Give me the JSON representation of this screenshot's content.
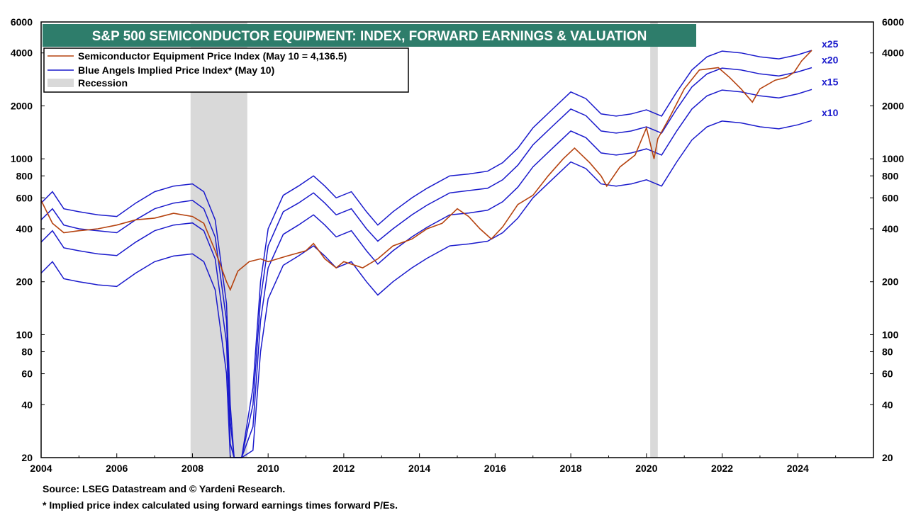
{
  "chart_data": {
    "type": "line",
    "title": "S&P 500 SEMICONDUCTOR EQUIPMENT: INDEX, FORWARD EARNINGS & VALUATION",
    "y_scale": "log",
    "ylim": [
      20,
      6000
    ],
    "xlim": [
      2004,
      2026
    ],
    "x_ticks": [
      "2004",
      "2006",
      "2008",
      "2010",
      "2012",
      "2014",
      "2016",
      "2018",
      "2020",
      "2022",
      "2024"
    ],
    "x_tick_values": [
      2004,
      2006,
      2008,
      2010,
      2012,
      2014,
      2016,
      2018,
      2020,
      2022,
      2024
    ],
    "y_ticks": [
      "6000",
      "4000",
      "2000",
      "1000",
      "800",
      "600",
      "400",
      "200",
      "100",
      "80",
      "60",
      "40",
      "20"
    ],
    "y_tick_values": [
      6000,
      4000,
      2000,
      1000,
      800,
      600,
      400,
      200,
      100,
      80,
      60,
      40,
      20
    ],
    "grid": false,
    "legend_position": "top-left",
    "legend": {
      "price": "Semiconductor Equipment Price Index (May 10 = 4,136.5)",
      "implied": "Blue Angels Implied Price Index* (May 10)",
      "recession": "Recession"
    },
    "colors": {
      "price": "#b5420f",
      "implied": "#1a1acc",
      "recession": "#d9d9d9",
      "title_bg": "#2e7d6b"
    },
    "recessions": [
      [
        2007.95,
        2009.45
      ],
      [
        2020.1,
        2020.3
      ]
    ],
    "price_series": {
      "name": "Semiconductor Equipment Price Index (May 10 = 4,136.5)",
      "x": [
        2004.0,
        2004.3,
        2004.6,
        2005.0,
        2005.5,
        2006.0,
        2006.5,
        2007.0,
        2007.5,
        2008.0,
        2008.3,
        2008.6,
        2008.9,
        2009.0,
        2009.2,
        2009.5,
        2009.8,
        2010.0,
        2010.5,
        2011.0,
        2011.2,
        2011.5,
        2011.8,
        2012.0,
        2012.5,
        2012.9,
        2013.3,
        2013.8,
        2014.2,
        2014.6,
        2015.0,
        2015.3,
        2015.6,
        2015.9,
        2016.2,
        2016.6,
        2017.0,
        2017.4,
        2017.8,
        2018.1,
        2018.5,
        2018.8,
        2018.95,
        2019.3,
        2019.7,
        2020.0,
        2020.2,
        2020.3,
        2020.6,
        2021.0,
        2021.4,
        2021.9,
        2022.2,
        2022.5,
        2022.8,
        2023.0,
        2023.4,
        2023.7,
        2023.9,
        2024.1,
        2024.37
      ],
      "values": [
        580,
        430,
        380,
        390,
        400,
        420,
        450,
        460,
        490,
        470,
        430,
        300,
        200,
        180,
        230,
        260,
        270,
        260,
        280,
        300,
        330,
        270,
        240,
        260,
        240,
        270,
        320,
        350,
        400,
        430,
        520,
        470,
        400,
        350,
        410,
        550,
        620,
        800,
        1000,
        1150,
        950,
        800,
        700,
        900,
        1050,
        1500,
        1000,
        1300,
        1700,
        2500,
        3200,
        3300,
        2900,
        2500,
        2100,
        2500,
        2800,
        2900,
        3100,
        3600,
        4136.5
      ]
    },
    "implied_series": [
      {
        "name": "x25",
        "x": [
          2004.0,
          2004.3,
          2004.6,
          2005.0,
          2005.5,
          2006.0,
          2006.5,
          2007.0,
          2007.5,
          2008.0,
          2008.3,
          2008.6,
          2008.9,
          2009.0,
          2009.1,
          2009.3,
          2009.6,
          2009.8,
          2010.0,
          2010.4,
          2010.8,
          2011.2,
          2011.5,
          2011.8,
          2012.2,
          2012.6,
          2012.9,
          2013.3,
          2013.8,
          2014.2,
          2014.8,
          2015.3,
          2015.8,
          2016.2,
          2016.6,
          2017.0,
          2017.5,
          2018.0,
          2018.4,
          2018.8,
          2019.2,
          2019.6,
          2020.0,
          2020.4,
          2020.8,
          2021.2,
          2021.6,
          2022.0,
          2022.5,
          2023.0,
          2023.5,
          2024.0,
          2024.37
        ],
        "values": [
          560,
          650,
          520,
          500,
          480,
          470,
          560,
          650,
          700,
          720,
          650,
          450,
          150,
          40,
          20,
          20,
          50,
          200,
          400,
          620,
          700,
          800,
          700,
          600,
          650,
          500,
          420,
          500,
          600,
          680,
          800,
          820,
          850,
          950,
          1150,
          1500,
          1900,
          2400,
          2200,
          1800,
          1750,
          1800,
          1900,
          1750,
          2400,
          3200,
          3800,
          4100,
          4000,
          3800,
          3700,
          3900,
          4136.5
        ]
      },
      {
        "name": "x20",
        "x": [
          2004.0,
          2004.3,
          2004.6,
          2005.0,
          2005.5,
          2006.0,
          2006.5,
          2007.0,
          2007.5,
          2008.0,
          2008.3,
          2008.6,
          2008.9,
          2009.0,
          2009.1,
          2009.3,
          2009.6,
          2009.8,
          2010.0,
          2010.4,
          2010.8,
          2011.2,
          2011.5,
          2011.8,
          2012.2,
          2012.6,
          2012.9,
          2013.3,
          2013.8,
          2014.2,
          2014.8,
          2015.3,
          2015.8,
          2016.2,
          2016.6,
          2017.0,
          2017.5,
          2018.0,
          2018.4,
          2018.8,
          2019.2,
          2019.6,
          2020.0,
          2020.4,
          2020.8,
          2021.2,
          2021.6,
          2022.0,
          2022.5,
          2023.0,
          2023.5,
          2024.0,
          2024.37
        ],
        "values": [
          450,
          520,
          420,
          400,
          390,
          380,
          450,
          520,
          560,
          580,
          520,
          360,
          120,
          32,
          20,
          20,
          40,
          160,
          320,
          500,
          560,
          640,
          560,
          480,
          520,
          400,
          340,
          400,
          480,
          545,
          640,
          660,
          680,
          760,
          920,
          1200,
          1520,
          1920,
          1760,
          1440,
          1400,
          1440,
          1520,
          1400,
          1920,
          2560,
          3040,
          3280,
          3200,
          3040,
          2960,
          3120,
          3300
        ]
      },
      {
        "name": "x15",
        "x": [
          2004.0,
          2004.3,
          2004.6,
          2005.0,
          2005.5,
          2006.0,
          2006.5,
          2007.0,
          2007.5,
          2008.0,
          2008.3,
          2008.6,
          2008.9,
          2009.0,
          2009.1,
          2009.3,
          2009.6,
          2009.8,
          2010.0,
          2010.4,
          2010.8,
          2011.2,
          2011.5,
          2011.8,
          2012.2,
          2012.6,
          2012.9,
          2013.3,
          2013.8,
          2014.2,
          2014.8,
          2015.3,
          2015.8,
          2016.2,
          2016.6,
          2017.0,
          2017.5,
          2018.0,
          2018.4,
          2018.8,
          2019.2,
          2019.6,
          2020.0,
          2020.4,
          2020.8,
          2021.2,
          2021.6,
          2022.0,
          2022.5,
          2023.0,
          2023.5,
          2024.0,
          2024.37
        ],
        "values": [
          336,
          390,
          312,
          300,
          288,
          282,
          336,
          390,
          420,
          432,
          390,
          270,
          90,
          24,
          20,
          20,
          30,
          120,
          240,
          372,
          420,
          480,
          420,
          360,
          390,
          300,
          252,
          300,
          360,
          408,
          480,
          492,
          510,
          570,
          690,
          900,
          1140,
          1440,
          1320,
          1080,
          1050,
          1080,
          1140,
          1050,
          1440,
          1920,
          2280,
          2460,
          2400,
          2280,
          2220,
          2340,
          2480
        ]
      },
      {
        "name": "x10",
        "x": [
          2004.0,
          2004.3,
          2004.6,
          2005.0,
          2005.5,
          2006.0,
          2006.5,
          2007.0,
          2007.5,
          2008.0,
          2008.3,
          2008.6,
          2008.9,
          2009.0,
          2009.1,
          2009.3,
          2009.6,
          2009.8,
          2010.0,
          2010.4,
          2010.8,
          2011.2,
          2011.5,
          2011.8,
          2012.2,
          2012.6,
          2012.9,
          2013.3,
          2013.8,
          2014.2,
          2014.8,
          2015.3,
          2015.8,
          2016.2,
          2016.6,
          2017.0,
          2017.5,
          2018.0,
          2018.4,
          2018.8,
          2019.2,
          2019.6,
          2020.0,
          2020.4,
          2020.8,
          2021.2,
          2021.6,
          2022.0,
          2022.5,
          2023.0,
          2023.5,
          2024.0,
          2024.37
        ],
        "values": [
          224,
          260,
          208,
          200,
          192,
          188,
          224,
          260,
          280,
          288,
          260,
          180,
          60,
          20,
          20,
          20,
          22,
          80,
          160,
          248,
          280,
          320,
          280,
          240,
          260,
          200,
          168,
          200,
          240,
          272,
          320,
          328,
          340,
          380,
          460,
          600,
          760,
          960,
          880,
          720,
          700,
          720,
          760,
          700,
          960,
          1280,
          1520,
          1640,
          1600,
          1520,
          1480,
          1560,
          1650
        ]
      }
    ],
    "multiplier_labels": [
      "x25",
      "x20",
      "x15",
      "x10"
    ]
  },
  "footnotes": {
    "source": "Source: LSEG Datastream and © Yardeni Research.",
    "note": "* Implied price index calculated using forward earnings times forward P/Es."
  }
}
